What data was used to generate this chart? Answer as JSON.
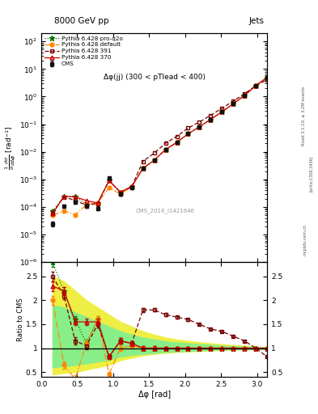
{
  "title_top": "8000 GeV pp",
  "title_right": "Jets",
  "annotation": "Δφ(jj) (300 < pTlead < 400)",
  "cms_label": "CMS_2016_I1421646",
  "rivet_label": "Rivet 3.1.10, ≥ 3.2M events",
  "arxiv_label": "[arXiv:1306.3436]",
  "mcplots_label": "mcplots.cern.ch",
  "ylabel_main": "$\\frac{1}{\\sigma}\\frac{d\\sigma}{d\\Delta\\phi}$ [rad$^{-1}$]",
  "ylabel_ratio": "Ratio to CMS",
  "xlabel": "Δφ [rad]",
  "color_cms": "#111111",
  "color_py370": "#cc0000",
  "color_py391": "#770000",
  "color_pydef": "#ff8800",
  "color_pyq2o": "#007700",
  "color_band_green": "#88ee88",
  "color_band_yellow": "#eeee44",
  "legend_entries": [
    "CMS",
    "Pythia 6.428 370",
    "Pythia 6.428 391",
    "Pythia 6.428 default",
    "Pythia 6.428 pro-q2o"
  ],
  "dphi": [
    0.157,
    0.314,
    0.471,
    0.628,
    0.785,
    0.942,
    1.099,
    1.257,
    1.414,
    1.571,
    1.728,
    1.885,
    2.042,
    2.199,
    2.356,
    2.513,
    2.67,
    2.827,
    2.984,
    3.141
  ],
  "cms_y": [
    2.5e-05,
    0.00011,
    0.00015,
    0.00011,
    9e-05,
    0.0011,
    0.0003,
    0.0005,
    0.0025,
    0.005,
    0.012,
    0.022,
    0.045,
    0.08,
    0.15,
    0.28,
    0.55,
    1.1,
    2.5,
    5.0
  ],
  "cms_yerr_rel": [
    0.2,
    0.15,
    0.15,
    0.15,
    0.15,
    0.1,
    0.12,
    0.1,
    0.08,
    0.07,
    0.06,
    0.05,
    0.05,
    0.04,
    0.04,
    0.03,
    0.03,
    0.03,
    0.02,
    0.02
  ],
  "ratio_py370": [
    2.3,
    2.2,
    1.55,
    1.55,
    1.55,
    0.82,
    1.15,
    1.1,
    1.0,
    1.0,
    1.0,
    1.0,
    1.0,
    1.0,
    1.0,
    1.0,
    1.0,
    1.0,
    1.0,
    1.0
  ],
  "ratio_py391": [
    2.5,
    2.1,
    1.15,
    1.05,
    1.5,
    0.82,
    1.15,
    1.1,
    1.8,
    1.8,
    1.7,
    1.65,
    1.6,
    1.5,
    1.4,
    1.35,
    1.25,
    1.15,
    1.0,
    0.82
  ],
  "ratio_pydef": [
    2.0,
    0.65,
    0.35,
    1.1,
    1.6,
    0.45,
    1.0,
    1.05,
    1.0,
    1.0,
    1.0,
    1.0,
    1.0,
    1.0,
    1.0,
    1.0,
    1.0,
    1.0,
    1.0,
    1.0
  ],
  "ratio_pyq2o": [
    2.8,
    2.2,
    1.6,
    1.1,
    1.6,
    0.82,
    1.15,
    1.1,
    1.0,
    1.0,
    1.0,
    1.0,
    1.0,
    1.0,
    1.0,
    1.0,
    1.0,
    1.0,
    1.0,
    1.0
  ],
  "band_yellow_lo": [
    0.45,
    0.48,
    0.5,
    0.55,
    0.6,
    0.65,
    0.75,
    0.8,
    0.85,
    0.88,
    0.9,
    0.92,
    0.93,
    0.94,
    0.95,
    0.96,
    0.97,
    0.97,
    0.98,
    0.99
  ],
  "band_yellow_hi": [
    2.5,
    2.4,
    2.2,
    2.0,
    1.85,
    1.7,
    1.55,
    1.45,
    1.35,
    1.28,
    1.22,
    1.18,
    1.15,
    1.12,
    1.1,
    1.08,
    1.06,
    1.05,
    1.03,
    1.01
  ],
  "band_green_lo": [
    0.6,
    0.62,
    0.65,
    0.68,
    0.72,
    0.76,
    0.82,
    0.86,
    0.88,
    0.9,
    0.92,
    0.93,
    0.94,
    0.95,
    0.96,
    0.97,
    0.97,
    0.98,
    0.98,
    0.99
  ],
  "band_green_hi": [
    1.9,
    1.85,
    1.75,
    1.65,
    1.55,
    1.45,
    1.35,
    1.28,
    1.22,
    1.18,
    1.14,
    1.12,
    1.1,
    1.08,
    1.07,
    1.05,
    1.04,
    1.03,
    1.02,
    1.01
  ]
}
